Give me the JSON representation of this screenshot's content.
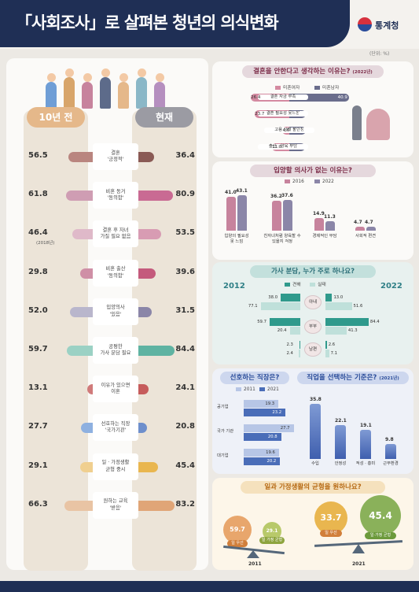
{
  "header": {
    "title": "「사회조사」로 살펴본 청년의 의식변화",
    "org": "통계청",
    "unit": "(단위: %)"
  },
  "left": {
    "col_left": "10년 전",
    "col_right": "현재",
    "rows": [
      {
        "label": "결혼\n'긍정적'",
        "left": 56.5,
        "right": 36.4,
        "cl": "#b9857f",
        "cr": "#8a5a55"
      },
      {
        "label": "비혼 동거\n'동의함'",
        "left": 61.8,
        "right": 80.9,
        "cl": "#cf9db3",
        "cr": "#c96a93"
      },
      {
        "label": "결혼 후 자녀\n가질 필요 없음",
        "left": 46.4,
        "right": 53.5,
        "cl": "#dfb9c9",
        "cr": "#d89cb3",
        "sub": "(2018년)"
      },
      {
        "label": "비혼 출산\n'동의함'",
        "left": 29.8,
        "right": 39.6,
        "cl": "#cf8fa6",
        "cr": "#c45a7c"
      },
      {
        "label": "입양의사\n'있음'",
        "left": 52.0,
        "right": 31.5,
        "cl": "#b9b6cc",
        "cr": "#8b86a8"
      },
      {
        "label": "공평한\n가사 분담 필요",
        "left": 59.7,
        "right": 84.4,
        "cl": "#9bd1c4",
        "cr": "#5fb3a2"
      },
      {
        "label": "이유가 있으면\n이혼",
        "left": 13.1,
        "right": 24.1,
        "cl": "#d07a7a",
        "cr": "#c65c5c"
      },
      {
        "label": "선호하는 직장\n'국가기관'",
        "left": 27.7,
        "right": 20.8,
        "cl": "#8eb0e0",
        "cr": "#6e8fcc"
      },
      {
        "label": "일 · 가정생활\n균형 중시",
        "left": 29.1,
        "right": 45.4,
        "cl": "#f0cf8f",
        "cr": "#e9b64f"
      },
      {
        "label": "원하는 교육\n'받음'",
        "left": 66.3,
        "right": 83.2,
        "cl": "#e9c4a4",
        "cr": "#e0a577"
      }
    ]
  },
  "marriage": {
    "title": "결혼을 안한다고 생각하는 이유는?",
    "title_note": "(2022년)",
    "legend": [
      "미혼여자",
      "미혼남자"
    ],
    "items": [
      {
        "label": "결혼 자금 부족",
        "female": 26.4,
        "male": 40.9
      },
      {
        "label": "결혼 필요성 못느낌",
        "female": 23.7,
        "male": 11.3
      },
      {
        "label": "고용 상태 불안정",
        "female": 4.6,
        "male": 11.2
      },
      {
        "label": "출산 · 양육 부담",
        "female": 11.8,
        "male": 10.6
      }
    ]
  },
  "adoption": {
    "title": "입양할 의사가 없는 이유는?",
    "legend": [
      "2016",
      "2022"
    ],
    "items": [
      {
        "label": "입양의 필요성\n못 느낌",
        "v2016": 41.0,
        "v2022": 43.1
      },
      {
        "label": "친자녀처럼 양육할 수\n있을지 걱정",
        "v2016": 36.2,
        "v2022": 37.6
      },
      {
        "label": "경제적인 부담",
        "v2016": 14.9,
        "v2022": 11.3
      },
      {
        "label": "사회적 편견",
        "v2016": 4.7,
        "v2022": 4.7
      }
    ]
  },
  "housework": {
    "title": "가사 분담, 누가 주로 하나요?",
    "legend": [
      "견해",
      "실태"
    ],
    "year_left": "2012",
    "year_right": "2022",
    "rows": [
      {
        "label": "아내",
        "l_view": 38.0,
        "l_real": 77.1,
        "r_view": 13.0,
        "r_real": 51.6
      },
      {
        "label": "부부",
        "l_view": 59.7,
        "l_real": 20.4,
        "r_view": 84.4,
        "r_real": 41.3
      },
      {
        "label": "남편",
        "l_view": 2.3,
        "l_real": 2.4,
        "r_view": 2.6,
        "r_real": 7.1
      }
    ]
  },
  "workplace": {
    "title": "선호하는 직장은?",
    "legend": [
      "2011",
      "2021"
    ],
    "items": [
      {
        "label": "공기업",
        "v2011": 19.3,
        "v2021": 23.2
      },
      {
        "label": "국가 기관",
        "v2011": 27.7,
        "v2021": 20.8
      },
      {
        "label": "대기업",
        "v2011": 19.6,
        "v2021": 20.2
      }
    ]
  },
  "criteria": {
    "title": "직업을 선택하는 기준은?",
    "title_note": "(2021년)",
    "items": [
      {
        "label": "수입",
        "value": 35.8
      },
      {
        "label": "안정성",
        "value": 22.1
      },
      {
        "label": "적성 · 흥미",
        "value": 19.1
      },
      {
        "label": "근무환경",
        "value": 9.8
      }
    ]
  },
  "balance": {
    "title": "일과 가정생활의 균형을 원하나요?",
    "y2011": {
      "label": "2011",
      "work": 59.7,
      "balance": 29.1,
      "work_tag": "일 우선",
      "balance_tag": "일 가정 균형"
    },
    "y2021": {
      "label": "2021",
      "work": 33.7,
      "balance": 45.4,
      "work_tag": "일 우선",
      "balance_tag": "일·가정 균형"
    }
  },
  "chart_data": [
    {
      "type": "bar",
      "title": "",
      "categories": [
        "결혼 '긍정적'",
        "비혼 동거 '동의함'",
        "결혼 후 자녀 가질 필요 없음",
        "비혼 출산 '동의함'",
        "입양의사 '있음'",
        "공평한 가사 분담 필요",
        "이유가 있으면 이혼",
        "선호하는 직장 '국가기관'",
        "일 · 가정생활 균형 중시",
        "원하는 교육 '받음'"
      ],
      "series": [
        {
          "name": "10년 전",
          "values": [
            56.5,
            61.8,
            46.4,
            29.8,
            52.0,
            59.7,
            13.1,
            27.7,
            29.1,
            66.3
          ]
        },
        {
          "name": "현재",
          "values": [
            36.4,
            80.9,
            53.5,
            39.6,
            31.5,
            84.4,
            24.1,
            20.8,
            45.4,
            83.2
          ]
        }
      ]
    },
    {
      "type": "bar",
      "title": "결혼을 안한다고 생각하는 이유는?",
      "categories": [
        "결혼 자금 부족",
        "결혼 필요성 못느낌",
        "고용 상태 불안정",
        "출산 · 양육 부담"
      ],
      "series": [
        {
          "name": "미혼여자",
          "values": [
            26.4,
            23.7,
            4.6,
            11.8
          ]
        },
        {
          "name": "미혼남자",
          "values": [
            40.9,
            11.3,
            11.2,
            10.6
          ]
        }
      ]
    },
    {
      "type": "bar",
      "title": "입양할 의사가 없는 이유는?",
      "categories": [
        "입양의 필요성 못 느낌",
        "친자녀처럼 양육할 수 있을지 걱정",
        "경제적인 부담",
        "사회적 편견"
      ],
      "series": [
        {
          "name": "2016",
          "values": [
            41.0,
            36.2,
            14.9,
            4.7
          ]
        },
        {
          "name": "2022",
          "values": [
            43.1,
            37.6,
            11.3,
            4.7
          ]
        }
      ]
    },
    {
      "type": "bar",
      "title": "가사 분담, 누가 주로 하나요?",
      "categories": [
        "아내",
        "부부",
        "남편"
      ],
      "series": [
        {
          "name": "2012 견해",
          "values": [
            38.0,
            59.7,
            2.3
          ]
        },
        {
          "name": "2012 실태",
          "values": [
            77.1,
            20.4,
            2.4
          ]
        },
        {
          "name": "2022 견해",
          "values": [
            13.0,
            84.4,
            2.6
          ]
        },
        {
          "name": "2022 실태",
          "values": [
            51.6,
            41.3,
            7.1
          ]
        }
      ]
    },
    {
      "type": "bar",
      "title": "선호하는 직장은?",
      "categories": [
        "공기업",
        "국가 기관",
        "대기업"
      ],
      "series": [
        {
          "name": "2011",
          "values": [
            19.3,
            27.7,
            19.6
          ]
        },
        {
          "name": "2021",
          "values": [
            23.2,
            20.8,
            20.2
          ]
        }
      ]
    },
    {
      "type": "bar",
      "title": "직업을 선택하는 기준은?",
      "categories": [
        "수입",
        "안정성",
        "적성 · 흥미",
        "근무환경"
      ],
      "values": [
        35.8,
        22.1,
        19.1,
        9.8
      ]
    },
    {
      "type": "bar",
      "title": "일과 가정생활의 균형을 원하나요?",
      "categories": [
        "2011",
        "2021"
      ],
      "series": [
        {
          "name": "일 우선",
          "values": [
            59.7,
            33.7
          ]
        },
        {
          "name": "일·가정 균형",
          "values": [
            29.1,
            45.4
          ]
        }
      ]
    }
  ]
}
